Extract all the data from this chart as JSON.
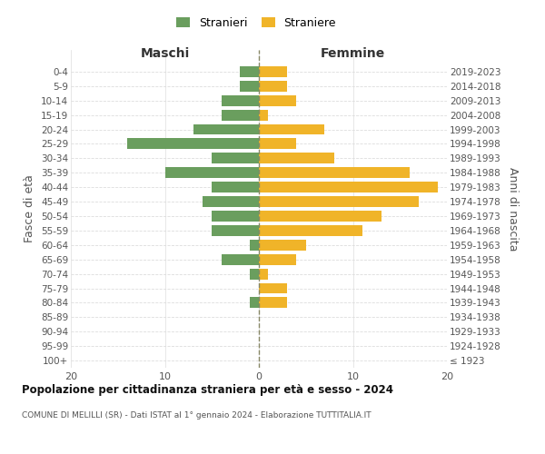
{
  "age_groups": [
    "100+",
    "95-99",
    "90-94",
    "85-89",
    "80-84",
    "75-79",
    "70-74",
    "65-69",
    "60-64",
    "55-59",
    "50-54",
    "45-49",
    "40-44",
    "35-39",
    "30-34",
    "25-29",
    "20-24",
    "15-19",
    "10-14",
    "5-9",
    "0-4"
  ],
  "birth_years": [
    "≤ 1923",
    "1924-1928",
    "1929-1933",
    "1934-1938",
    "1939-1943",
    "1944-1948",
    "1949-1953",
    "1954-1958",
    "1959-1963",
    "1964-1968",
    "1969-1973",
    "1974-1978",
    "1979-1983",
    "1984-1988",
    "1989-1993",
    "1994-1998",
    "1999-2003",
    "2004-2008",
    "2009-2013",
    "2014-2018",
    "2019-2023"
  ],
  "maschi": [
    0,
    0,
    0,
    0,
    1,
    0,
    1,
    4,
    1,
    5,
    5,
    6,
    5,
    10,
    5,
    14,
    7,
    4,
    4,
    2,
    2
  ],
  "femmine": [
    0,
    0,
    0,
    0,
    3,
    3,
    1,
    4,
    5,
    11,
    13,
    17,
    19,
    16,
    8,
    4,
    7,
    1,
    4,
    3,
    3
  ],
  "male_color": "#6a9e5e",
  "female_color": "#f0b429",
  "dashed_line_color": "#888866",
  "title": "Popolazione per cittadinanza straniera per età e sesso - 2024",
  "subtitle": "COMUNE DI MELILLI (SR) - Dati ISTAT al 1° gennaio 2024 - Elaborazione TUTTITALIA.IT",
  "legend_male": "Stranieri",
  "legend_female": "Straniere",
  "xlabel_left": "Maschi",
  "xlabel_right": "Femmine",
  "ylabel_left": "Fasce di età",
  "ylabel_right": "Anni di nascita",
  "xlim": 20,
  "background_color": "#ffffff",
  "grid_color": "#cccccc"
}
